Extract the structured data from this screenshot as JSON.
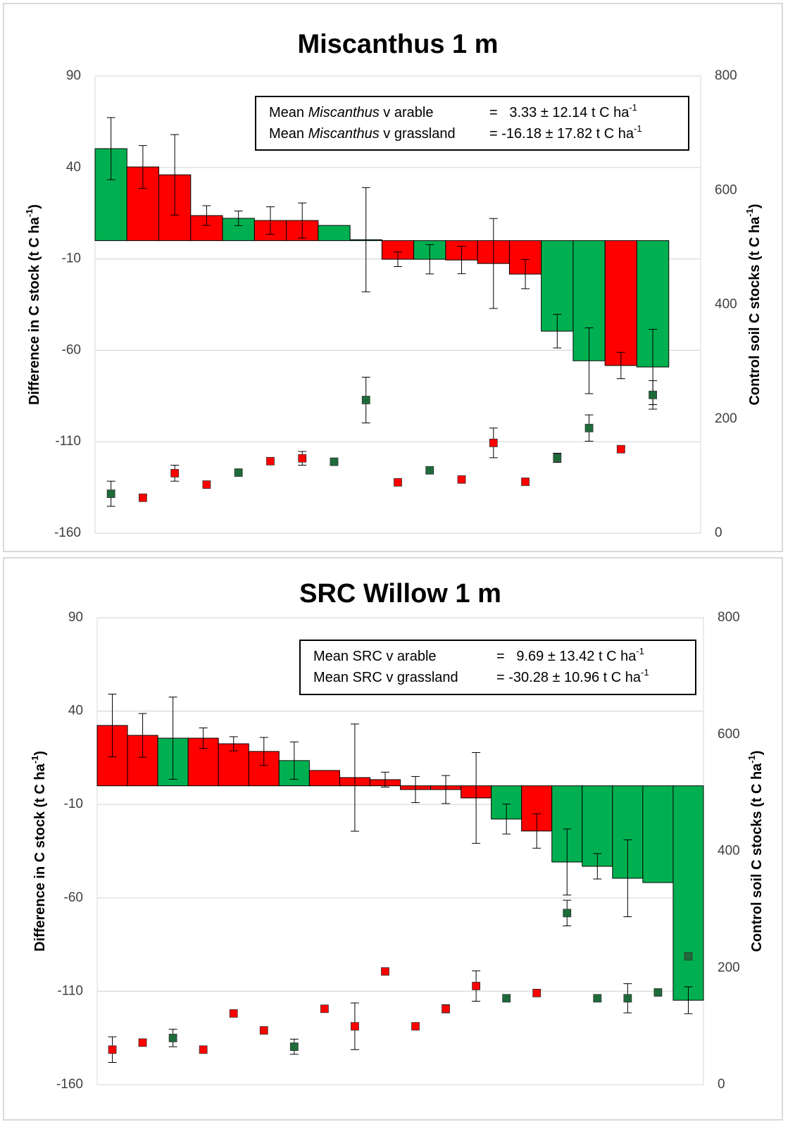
{
  "chart_data": [
    {
      "type": "bar",
      "title": "Miscanthus 1 m",
      "ylabel": {
        "text": "Difference in C stock (t C ha",
        "exp": "-1",
        "end": ")"
      },
      "y2label": {
        "text": "Control soil C stocks (t C ha",
        "exp": "-1",
        "end": ")"
      },
      "annotations": [
        {
          "pre": "Mean ",
          "em": "Miscanthus",
          "post": " v arable",
          "value": "=   3.33 ± 12.14 t C ha",
          "exp": "-1"
        },
        {
          "pre": "Mean ",
          "em": "Miscanthus",
          "post": " v grassland",
          "value": "= -16.18 ± 17.82 t C ha",
          "exp": "-1"
        }
      ],
      "ylim": [
        -160,
        90
      ],
      "yticks": [
        90,
        40,
        -10,
        -60,
        -110,
        -160
      ],
      "y2lim": [
        0,
        800
      ],
      "y2ticks": [
        800,
        600,
        400,
        200,
        0
      ],
      "grid": true,
      "categories": [
        null,
        null,
        null,
        null,
        null,
        null,
        null,
        null,
        null,
        null,
        null,
        null,
        null,
        null,
        null,
        null,
        null,
        null
      ],
      "series": [
        {
          "type": "bar",
          "values": [
            50.3,
            40.3,
            36,
            13.7,
            12.2,
            11,
            11,
            8.3,
            0.5,
            -10.2,
            -10.2,
            -10.6,
            -12.5,
            -18.3,
            -49.5,
            -65.7,
            -68.3,
            -69.1
          ],
          "errors": [
            17,
            11.7,
            22,
            5.4,
            4,
            7.5,
            9.6,
            null,
            28.5,
            4,
            8,
            7.5,
            24.6,
            8,
            9.2,
            18,
            7.2,
            20.6
          ],
          "colors": [
            "#00b050",
            "#ff0000",
            "#ff0000",
            "#ff0000",
            "#00b050",
            "#ff0000",
            "#ff0000",
            "#00b050",
            "#00b050",
            "#ff0000",
            "#00b050",
            "#ff0000",
            "#ff0000",
            "#ff0000",
            "#00b050",
            "#00b050",
            "#ff0000",
            "#00b050"
          ]
        },
        {
          "type": "scatter",
          "axis": "y2",
          "values": [
            69,
            62,
            105,
            85,
            106,
            126,
            131,
            125,
            233,
            89,
            110,
            94,
            158,
            90,
            132,
            184,
            147,
            242
          ],
          "errors": [
            22,
            4,
            14,
            null,
            null,
            null,
            12,
            null,
            40,
            null,
            null,
            5,
            26,
            null,
            8,
            23,
            4,
            25
          ],
          "colors": [
            "#1e6b3a",
            "#ff0000",
            "#ff0000",
            "#ff0000",
            "#1e6b3a",
            "#ff0000",
            "#ff0000",
            "#1e6b3a",
            "#1e6b3a",
            "#ff0000",
            "#1e6b3a",
            "#ff0000",
            "#ff0000",
            "#ff0000",
            "#1e6b3a",
            "#1e6b3a",
            "#ff0000",
            "#1e6b3a"
          ]
        }
      ]
    },
    {
      "type": "bar",
      "title": "SRC Willow 1 m",
      "ylabel": {
        "text": "Difference in C stock (t C ha",
        "exp": "-1",
        "end": ")"
      },
      "y2label": {
        "text": "Control soil C stocks (t C ha",
        "exp": "-1",
        "end": ")"
      },
      "annotations": [
        {
          "pre": "Mean SRC v arable",
          "value": "=   9.69 ± 13.42 t C ha",
          "exp": "-1"
        },
        {
          "pre": "Mean SRC v grassland",
          "value": "= -30.28 ± 10.96 t C ha",
          "exp": "-1"
        }
      ],
      "ylim": [
        -160,
        90
      ],
      "yticks": [
        90,
        40,
        -10,
        -60,
        -110,
        -160
      ],
      "y2lim": [
        0,
        800
      ],
      "y2ticks": [
        800,
        600,
        400,
        200,
        0
      ],
      "grid": true,
      "categories": [
        null,
        null,
        null,
        null,
        null,
        null,
        null,
        null,
        null,
        null,
        null,
        null,
        null,
        null,
        null,
        null,
        null,
        null,
        null,
        null
      ],
      "series": [
        {
          "type": "bar",
          "values": [
            32.3,
            27,
            25.5,
            25.5,
            22.5,
            18.4,
            13.5,
            8.2,
            4.4,
            3.3,
            -2,
            -2,
            -6.5,
            -17.8,
            -24.2,
            -40.8,
            -43.1,
            -49.5,
            -51.8,
            -114.8
          ],
          "errors": [
            16.8,
            11.7,
            22,
            5.5,
            3.8,
            7.5,
            10,
            null,
            28.7,
            4,
            7,
            7.5,
            24.3,
            8,
            9.2,
            17.7,
            6.8,
            20.6,
            null,
            7.2
          ],
          "colors": [
            "#ff0000",
            "#ff0000",
            "#00b050",
            "#ff0000",
            "#ff0000",
            "#ff0000",
            "#00b050",
            "#ff0000",
            "#ff0000",
            "#ff0000",
            "#ff0000",
            "#ff0000",
            "#ff0000",
            "#00b050",
            "#ff0000",
            "#00b050",
            "#00b050",
            "#00b050",
            "#00b050",
            "#00b050"
          ]
        },
        {
          "type": "scatter",
          "axis": "y2",
          "values": [
            60,
            72,
            80,
            60,
            122,
            93,
            65,
            130,
            100,
            194,
            100,
            130,
            169,
            148,
            157,
            294,
            148,
            148,
            158,
            220
          ],
          "errors": [
            22,
            5,
            15,
            null,
            null,
            null,
            13,
            null,
            40,
            null,
            null,
            7,
            26,
            null,
            6,
            22,
            4,
            25,
            null,
            null
          ],
          "colors": [
            "#ff0000",
            "#ff0000",
            "#1e6b3a",
            "#ff0000",
            "#ff0000",
            "#ff0000",
            "#1e6b3a",
            "#ff0000",
            "#ff0000",
            "#ff0000",
            "#ff0000",
            "#ff0000",
            "#ff0000",
            "#1e6b3a",
            "#ff0000",
            "#1e6b3a",
            "#1e6b3a",
            "#1e6b3a",
            "#1e6b3a",
            "#1e6b3a"
          ]
        }
      ]
    }
  ]
}
